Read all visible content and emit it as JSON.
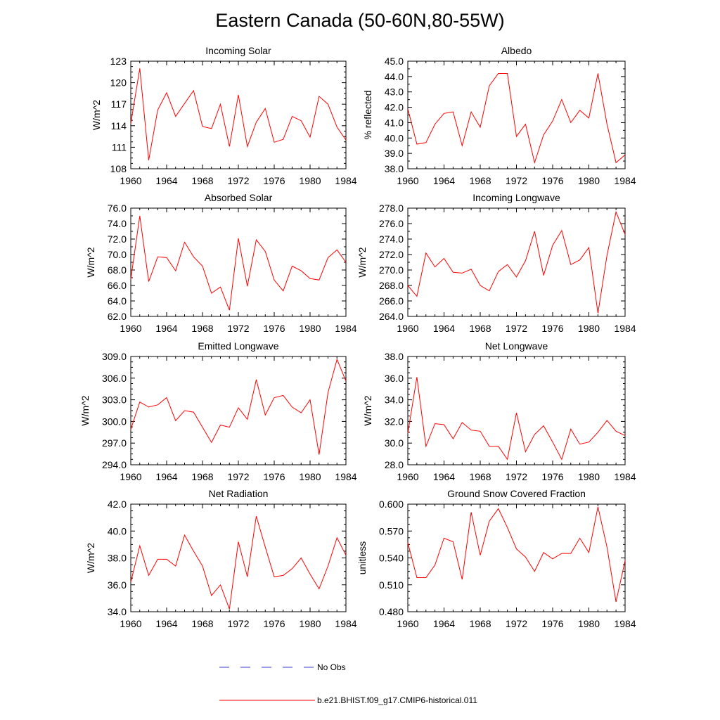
{
  "page": {
    "title": "Eastern Canada (50-60N,80-55W)"
  },
  "legend": {
    "obs_label": "No Obs",
    "obs_color": "#3b3bd6",
    "model_label": "b.e21.BHIST.f09_g17.CMIP6-historical.011",
    "model_color": "#ff0000"
  },
  "chart_data": [
    {
      "type": "line",
      "title": "Incoming Solar",
      "ylabel": "W/m^2",
      "xlim": [
        1960,
        1984
      ],
      "ylim": [
        108,
        123
      ],
      "yticks": [
        "108",
        "111",
        "114",
        "117",
        "120",
        "123"
      ],
      "xticks": [
        "1960",
        "1964",
        "1968",
        "1972",
        "1976",
        "1980",
        "1984"
      ],
      "x": [
        1960,
        1961,
        1962,
        1963,
        1964,
        1965,
        1966,
        1967,
        1968,
        1969,
        1970,
        1971,
        1972,
        1973,
        1974,
        1975,
        1976,
        1977,
        1978,
        1979,
        1980,
        1981,
        1982,
        1983,
        1984
      ],
      "series": [
        {
          "values": [
            114.3,
            122.0,
            109.2,
            116.2,
            118.6,
            115.3,
            117.1,
            118.9,
            113.9,
            113.6,
            117.0,
            111.1,
            118.3,
            111.1,
            114.5,
            116.4,
            111.7,
            112.1,
            115.3,
            114.7,
            112.4,
            118.1,
            117.0,
            113.8,
            112.0
          ]
        }
      ]
    },
    {
      "type": "line",
      "title": "Albedo",
      "ylabel": "% reflected",
      "xlim": [
        1960,
        1984
      ],
      "ylim": [
        38.0,
        45.0
      ],
      "yticks": [
        "38.0",
        "39.0",
        "40.0",
        "41.0",
        "42.0",
        "43.0",
        "44.0",
        "45.0"
      ],
      "xticks": [
        "1960",
        "1964",
        "1968",
        "1972",
        "1976",
        "1980",
        "1984"
      ],
      "x": [
        1960,
        1961,
        1962,
        1963,
        1964,
        1965,
        1966,
        1967,
        1968,
        1969,
        1970,
        1971,
        1972,
        1973,
        1974,
        1975,
        1976,
        1977,
        1978,
        1979,
        1980,
        1981,
        1982,
        1983,
        1984
      ],
      "series": [
        {
          "values": [
            41.9,
            39.6,
            39.7,
            40.9,
            41.6,
            41.7,
            39.5,
            41.7,
            40.7,
            43.4,
            44.2,
            44.2,
            40.1,
            40.9,
            38.4,
            40.2,
            41.1,
            42.5,
            41.0,
            41.8,
            41.3,
            44.2,
            40.9,
            38.4,
            38.9
          ]
        }
      ]
    },
    {
      "type": "line",
      "title": "Absorbed Solar",
      "ylabel": "W/m^2",
      "xlim": [
        1960,
        1984
      ],
      "ylim": [
        62.0,
        76.0
      ],
      "yticks": [
        "62.0",
        "64.0",
        "66.0",
        "68.0",
        "70.0",
        "72.0",
        "74.0",
        "76.0"
      ],
      "xticks": [
        "1960",
        "1964",
        "1968",
        "1972",
        "1976",
        "1980",
        "1984"
      ],
      "x": [
        1960,
        1961,
        1962,
        1963,
        1964,
        1965,
        1966,
        1967,
        1968,
        1969,
        1970,
        1971,
        1972,
        1973,
        1974,
        1975,
        1976,
        1977,
        1978,
        1979,
        1980,
        1981,
        1982,
        1983,
        1984
      ],
      "series": [
        {
          "values": [
            66.8,
            75.0,
            66.5,
            69.7,
            69.6,
            67.9,
            71.6,
            69.7,
            68.5,
            65.0,
            65.8,
            62.8,
            72.1,
            65.9,
            71.9,
            70.4,
            66.7,
            65.3,
            68.5,
            67.9,
            66.9,
            66.7,
            69.6,
            70.6,
            69.0
          ]
        }
      ]
    },
    {
      "type": "line",
      "title": "Incoming Longwave",
      "ylabel": "W/m^2",
      "xlim": [
        1960,
        1984
      ],
      "ylim": [
        264.0,
        278.0
      ],
      "yticks": [
        "264.0",
        "266.0",
        "268.0",
        "270.0",
        "272.0",
        "274.0",
        "276.0",
        "278.0"
      ],
      "xticks": [
        "1960",
        "1964",
        "1968",
        "1972",
        "1976",
        "1980",
        "1984"
      ],
      "x": [
        1960,
        1961,
        1962,
        1963,
        1964,
        1965,
        1966,
        1967,
        1968,
        1969,
        1970,
        1971,
        1972,
        1973,
        1974,
        1975,
        1976,
        1977,
        1978,
        1979,
        1980,
        1981,
        1982,
        1983,
        1984
      ],
      "series": [
        {
          "values": [
            268.0,
            266.6,
            272.2,
            270.4,
            271.5,
            269.7,
            269.6,
            270.1,
            268.0,
            267.3,
            269.8,
            270.7,
            269.1,
            271.2,
            275.0,
            269.3,
            273.2,
            275.1,
            270.7,
            271.3,
            272.9,
            264.4,
            271.9,
            277.5,
            274.6
          ]
        }
      ]
    },
    {
      "type": "line",
      "title": "Emitted Longwave",
      "ylabel": "W/m^2",
      "xlim": [
        1960,
        1984
      ],
      "ylim": [
        294.0,
        309.0
      ],
      "yticks": [
        "294.0",
        "297.0",
        "300.0",
        "303.0",
        "306.0",
        "309.0"
      ],
      "xticks": [
        "1960",
        "1964",
        "1968",
        "1972",
        "1976",
        "1980",
        "1984"
      ],
      "x": [
        1960,
        1961,
        1962,
        1963,
        1964,
        1965,
        1966,
        1967,
        1968,
        1969,
        1970,
        1971,
        1972,
        1973,
        1974,
        1975,
        1976,
        1977,
        1978,
        1979,
        1980,
        1981,
        1982,
        1983,
        1984
      ],
      "series": [
        {
          "values": [
            298.9,
            302.7,
            302.0,
            302.3,
            303.3,
            300.1,
            301.5,
            301.3,
            299.2,
            297.1,
            299.5,
            299.2,
            301.9,
            300.3,
            305.8,
            300.9,
            303.3,
            303.6,
            302.0,
            301.2,
            303.0,
            295.4,
            304.0,
            308.6,
            305.6
          ]
        }
      ]
    },
    {
      "type": "line",
      "title": "Net Longwave",
      "ylabel": "W/m^2",
      "xlim": [
        1960,
        1984
      ],
      "ylim": [
        28.0,
        38.0
      ],
      "yticks": [
        "28.0",
        "30.0",
        "32.0",
        "34.0",
        "36.0",
        "38.0"
      ],
      "xticks": [
        "1960",
        "1964",
        "1968",
        "1972",
        "1976",
        "1980",
        "1984"
      ],
      "x": [
        1960,
        1961,
        1962,
        1963,
        1964,
        1965,
        1966,
        1967,
        1968,
        1969,
        1970,
        1971,
        1972,
        1973,
        1974,
        1975,
        1976,
        1977,
        1978,
        1979,
        1980,
        1981,
        1982,
        1983,
        1984
      ],
      "series": [
        {
          "values": [
            30.9,
            36.1,
            29.7,
            31.8,
            31.7,
            30.4,
            31.9,
            31.2,
            31.1,
            29.7,
            29.7,
            28.5,
            32.8,
            29.2,
            30.8,
            31.6,
            30.1,
            28.5,
            31.3,
            29.9,
            30.1,
            31.0,
            32.1,
            31.1,
            30.7
          ]
        }
      ]
    },
    {
      "type": "line",
      "title": "Net Radiation",
      "ylabel": "W/m^2",
      "xlim": [
        1960,
        1984
      ],
      "ylim": [
        34.0,
        42.0
      ],
      "yticks": [
        "34.0",
        "36.0",
        "38.0",
        "40.0",
        "42.0"
      ],
      "xticks": [
        "1960",
        "1964",
        "1968",
        "1972",
        "1976",
        "1980",
        "1984"
      ],
      "x": [
        1960,
        1961,
        1962,
        1963,
        1964,
        1965,
        1966,
        1967,
        1968,
        1969,
        1970,
        1971,
        1972,
        1973,
        1974,
        1975,
        1976,
        1977,
        1978,
        1979,
        1980,
        1981,
        1982,
        1983,
        1984
      ],
      "series": [
        {
          "values": [
            36.2,
            38.9,
            36.7,
            37.9,
            37.9,
            37.4,
            39.7,
            38.5,
            37.4,
            35.2,
            36.0,
            34.2,
            39.2,
            36.6,
            41.1,
            38.8,
            36.6,
            36.7,
            37.2,
            38.0,
            36.8,
            35.7,
            37.4,
            39.5,
            38.2
          ]
        }
      ]
    },
    {
      "type": "line",
      "title": "Ground Snow Covered Fraction",
      "ylabel": "unitless",
      "xlim": [
        1960,
        1984
      ],
      "ylim": [
        0.48,
        0.6
      ],
      "yticks": [
        "0.480",
        "0.510",
        "0.540",
        "0.570",
        "0.600"
      ],
      "xticks": [
        "1960",
        "1964",
        "1968",
        "1972",
        "1976",
        "1980",
        "1984"
      ],
      "x": [
        1960,
        1961,
        1962,
        1963,
        1964,
        1965,
        1966,
        1967,
        1968,
        1969,
        1970,
        1971,
        1972,
        1973,
        1974,
        1975,
        1976,
        1977,
        1978,
        1979,
        1980,
        1981,
        1982,
        1983,
        1984
      ],
      "series": [
        {
          "values": [
            0.557,
            0.518,
            0.518,
            0.532,
            0.562,
            0.558,
            0.516,
            0.591,
            0.543,
            0.581,
            0.595,
            0.574,
            0.55,
            0.541,
            0.525,
            0.546,
            0.539,
            0.545,
            0.545,
            0.562,
            0.546,
            0.597,
            0.552,
            0.491,
            0.537
          ]
        }
      ]
    }
  ]
}
